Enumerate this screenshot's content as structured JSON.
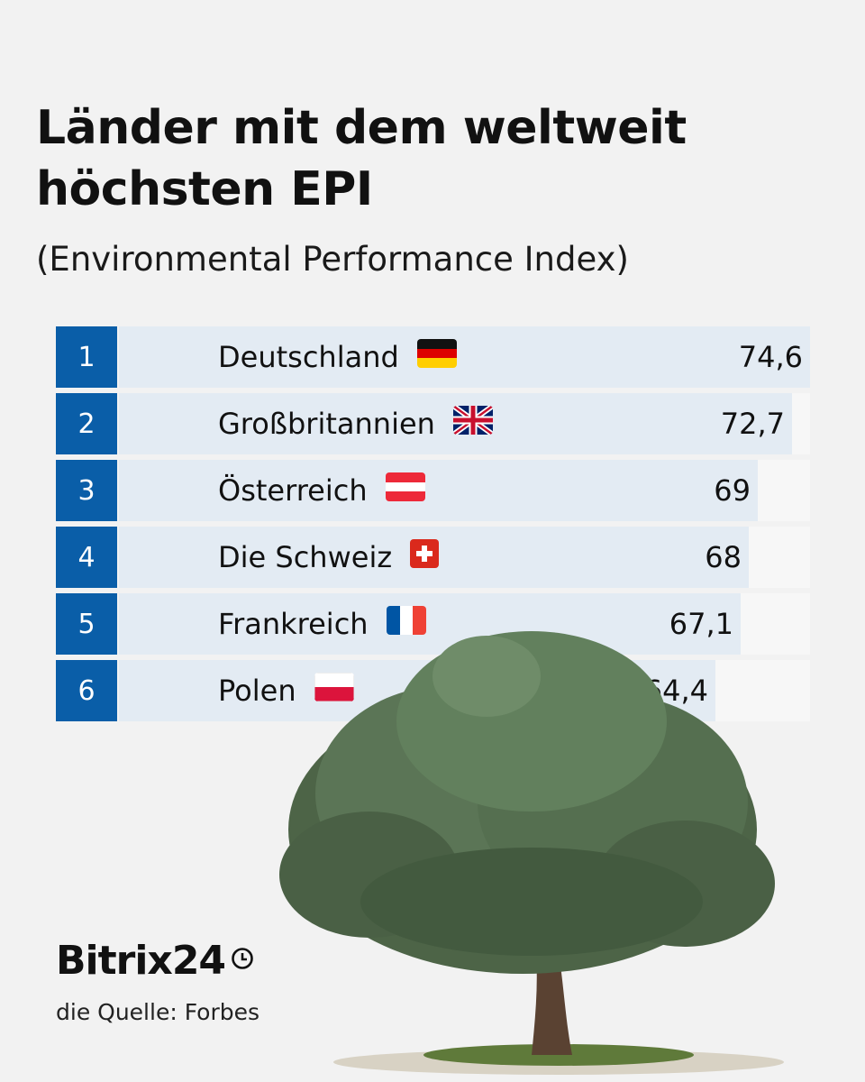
{
  "title_line1": "Länder mit dem weltweit",
  "title_line2": "höchsten EPI",
  "subtitle": "(Environmental Performance Index)",
  "chart_data": {
    "type": "bar",
    "orientation": "horizontal",
    "title": "Länder mit dem weltweit höchsten EPI",
    "subtitle": "(Environmental Performance Index)",
    "xlim": [
      0,
      74.6
    ],
    "rows": [
      {
        "rank": "1",
        "country": "Deutschland",
        "value": 74.6,
        "label": "74,6",
        "flag": "germany-flag-icon"
      },
      {
        "rank": "2",
        "country": "Großbritannien",
        "value": 72.7,
        "label": "72,7",
        "flag": "uk-flag-icon"
      },
      {
        "rank": "3",
        "country": "Österreich",
        "value": 69,
        "label": "69",
        "flag": "austria-flag-icon"
      },
      {
        "rank": "4",
        "country": "Die Schweiz",
        "value": 68,
        "label": "68",
        "flag": "switzerland-flag-icon"
      },
      {
        "rank": "5",
        "country": "Frankreich",
        "value": 67.1,
        "label": "67,1",
        "flag": "france-flag-icon"
      },
      {
        "rank": "6",
        "country": "Polen",
        "value": 64.4,
        "label": "64,4",
        "flag": "poland-flag-icon"
      }
    ]
  },
  "brand": "Bitrix24",
  "source": "die Quelle: Forbes",
  "colors": {
    "rank_box": "#0a5ea8",
    "bar_fill": "#e3ebf3",
    "bar_track": "#f7f7f7",
    "background": "#f2f2f2"
  }
}
